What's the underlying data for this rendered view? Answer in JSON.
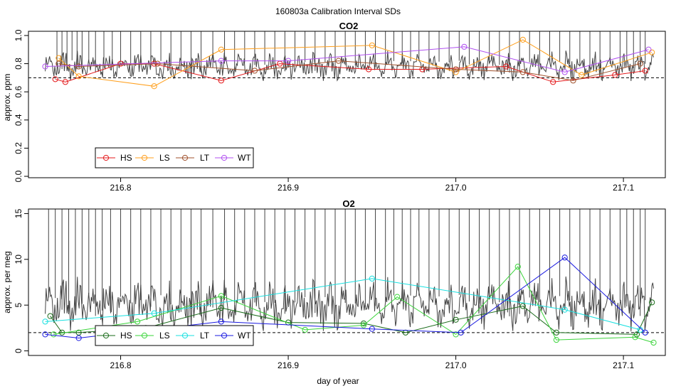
{
  "figure": {
    "suptitle": "160803a   Calibration Interval SDs",
    "xlabel": "day of year"
  },
  "chart_data": [
    {
      "type": "line",
      "title": "CO2",
      "xlabel": "",
      "ylabel": "approx. ppm",
      "xlim": [
        216.745,
        217.125
      ],
      "ylim": [
        -0.01,
        1.03
      ],
      "xticks": [
        216.8,
        216.9,
        217.0,
        217.1
      ],
      "xtick_labels": [
        "216.8",
        "216.9",
        "217.0",
        "217.1"
      ],
      "yticks": [
        0.0,
        0.2,
        0.4,
        0.6,
        0.8,
        1.0
      ],
      "ytick_labels": [
        "0.0",
        "0.2",
        "0.4",
        "0.6",
        "0.8",
        "1.0"
      ],
      "reference_line": 0.7,
      "legend_position": "bottom-left",
      "background_trace": {
        "color": "#444444",
        "base": 0.78,
        "amplitude": 0.09,
        "x_range": [
          216.755,
          217.118
        ],
        "spike_to": 1.03,
        "spike_x": [
          216.762,
          216.765,
          216.768,
          216.771,
          216.774,
          216.777,
          216.781,
          216.785,
          216.79,
          216.795,
          216.8,
          216.806,
          216.812,
          216.818,
          216.824,
          216.83,
          216.836,
          216.842,
          216.848,
          216.855,
          216.862,
          216.868,
          216.874,
          216.88,
          216.886,
          216.892,
          216.898,
          216.904,
          216.91,
          216.916,
          216.922,
          216.928,
          216.934,
          216.94,
          216.946,
          216.952,
          216.958,
          216.963,
          216.968,
          216.973,
          216.978,
          216.984,
          216.99,
          216.996,
          217.002,
          217.008,
          217.014,
          217.02,
          217.026,
          217.032,
          217.038,
          217.044,
          217.05,
          217.056,
          217.062,
          217.068,
          217.074,
          217.08,
          217.086,
          217.092,
          217.098,
          217.102,
          217.106,
          217.11,
          217.113
        ]
      },
      "series": [
        {
          "name": "HS",
          "color": "#e41a1c",
          "x": [
            216.761,
            216.767,
            216.8,
            216.82,
            216.86,
            216.895,
            216.948,
            216.98,
            217.03,
            217.058,
            217.095,
            217.113
          ],
          "y": [
            0.69,
            0.67,
            0.8,
            0.8,
            0.68,
            0.8,
            0.76,
            0.76,
            0.78,
            0.67,
            0.72,
            0.75
          ]
        },
        {
          "name": "LS",
          "color": "#ff9f1c",
          "x": [
            216.763,
            216.775,
            216.82,
            216.86,
            216.95,
            217.0,
            217.04,
            217.075,
            217.117
          ],
          "y": [
            0.84,
            0.71,
            0.64,
            0.9,
            0.93,
            0.74,
            0.97,
            0.72,
            0.88
          ]
        },
        {
          "name": "LT",
          "color": "#a0522d",
          "x": [
            216.763,
            216.775,
            216.822,
            216.88,
            216.93,
            217.0,
            217.04,
            217.07,
            217.11
          ],
          "y": [
            0.8,
            0.78,
            0.8,
            0.75,
            0.82,
            0.76,
            0.74,
            0.68,
            0.8
          ]
        },
        {
          "name": "WT",
          "color": "#b04ff0",
          "x": [
            216.755,
            216.86,
            216.9,
            217.005,
            217.065,
            217.115
          ],
          "y": [
            0.78,
            0.82,
            0.82,
            0.92,
            0.74,
            0.9
          ]
        }
      ]
    },
    {
      "type": "line",
      "title": "O2",
      "xlabel": "day of year",
      "ylabel": "approx. per meg",
      "xlim": [
        216.745,
        217.125
      ],
      "ylim": [
        -0.5,
        15.5
      ],
      "xticks": [
        216.8,
        216.9,
        217.0,
        217.1
      ],
      "xtick_labels": [
        "216.8",
        "216.9",
        "217.0",
        "217.1"
      ],
      "yticks": [
        0,
        5,
        10,
        15
      ],
      "ytick_labels": [
        "0",
        "5",
        "10",
        "15"
      ],
      "reference_line": 2,
      "legend_position": "bottom-left",
      "background_trace": {
        "color": "#444444",
        "base": 5.0,
        "amplitude": 2.5,
        "x_range": [
          216.755,
          217.118
        ],
        "spike_to": 15.5,
        "spike_x": [
          216.757,
          216.761,
          216.765,
          216.769,
          216.773,
          216.777,
          216.781,
          216.785,
          216.789,
          216.794,
          216.8,
          216.806,
          216.812,
          216.818,
          216.824,
          216.83,
          216.836,
          216.842,
          216.848,
          216.855,
          216.862,
          216.868,
          216.874,
          216.88,
          216.886,
          216.892,
          216.898,
          216.904,
          216.91,
          216.916,
          216.922,
          216.928,
          216.934,
          216.94,
          216.946,
          216.952,
          216.958,
          216.963,
          216.968,
          216.973,
          216.978,
          216.984,
          216.99,
          216.996,
          217.002,
          217.008,
          217.014,
          217.02,
          217.026,
          217.032,
          217.038,
          217.044,
          217.05,
          217.056,
          217.062,
          217.068,
          217.074,
          217.08,
          217.086,
          217.092,
          217.098,
          217.102,
          217.106,
          217.11,
          217.113
        ]
      },
      "series": [
        {
          "name": "HS",
          "color": "#1a6b1a",
          "x": [
            216.758,
            216.765,
            216.775,
            216.815,
            216.86,
            216.9,
            216.945,
            216.97,
            217.0,
            217.04,
            217.06,
            217.108,
            217.117
          ],
          "y": [
            3.8,
            2.0,
            2.0,
            2.5,
            4.7,
            3.1,
            3.0,
            2.0,
            3.4,
            4.9,
            2.0,
            1.8,
            5.3
          ]
        },
        {
          "name": "LS",
          "color": "#3ad43a",
          "x": [
            216.76,
            216.81,
            216.86,
            216.91,
            216.945,
            216.965,
            217.0,
            217.037,
            217.06,
            217.107,
            217.118
          ],
          "y": [
            1.8,
            3.2,
            6.0,
            2.3,
            2.8,
            5.9,
            1.8,
            9.2,
            1.2,
            1.5,
            0.9
          ]
        },
        {
          "name": "LT",
          "color": "#19e0e0",
          "x": [
            216.755,
            216.82,
            216.95,
            217.065,
            217.11
          ],
          "y": [
            3.2,
            4.1,
            7.9,
            4.5,
            2.3
          ]
        },
        {
          "name": "WT",
          "color": "#1a1ae0",
          "x": [
            216.755,
            216.775,
            216.86,
            216.95,
            217.003,
            217.065,
            217.113
          ],
          "y": [
            1.8,
            1.4,
            3.2,
            2.4,
            2.0,
            10.2,
            2.0
          ]
        }
      ]
    }
  ],
  "legends": [
    {
      "items": [
        "HS",
        "LS",
        "LT",
        "WT"
      ]
    },
    {
      "items": [
        "HS",
        "LS",
        "LT",
        "WT"
      ]
    }
  ]
}
